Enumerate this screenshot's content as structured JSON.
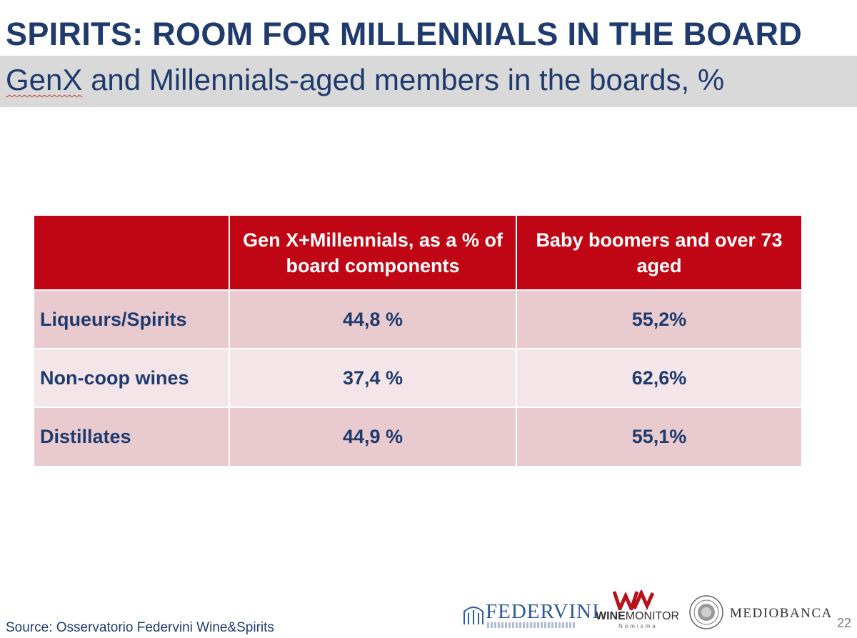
{
  "title": "SPIRITS: ROOM FOR MILLENNIALS IN THE BOARD",
  "subtitle": {
    "underlined_word": "GenX",
    "rest": " and Millennials-aged members in the boards, %"
  },
  "table": {
    "headers": [
      "",
      "Gen X+Millennials, as a % of board components",
      "Baby boomers and over 73 aged"
    ],
    "rows": [
      {
        "label": "Liqueurs/Spirits",
        "genx": "44,8 %",
        "boomers": "55,2%"
      },
      {
        "label": "Non-coop wines",
        "genx": "37,4 %",
        "boomers": "62,6%"
      },
      {
        "label": "Distillates",
        "genx": "44,9 %",
        "boomers": "55,1%"
      }
    ]
  },
  "source": "Source: Osservatorio Federvini Wine&Spirits",
  "page_number": "22",
  "logos": {
    "federvini": "FEDERVINI",
    "winemonitor_bold": "WINE",
    "winemonitor_rest": "MONITOR",
    "winemonitor_sub": "Nomisma",
    "mediobanca": "MEDIOBANCA"
  },
  "colors": {
    "title_blue": "#1f3b6e",
    "header_red": "#c00614",
    "row_odd": "#e9cbcf",
    "row_even": "#f4e6e8",
    "subtitle_band": "#d9d9d9"
  }
}
